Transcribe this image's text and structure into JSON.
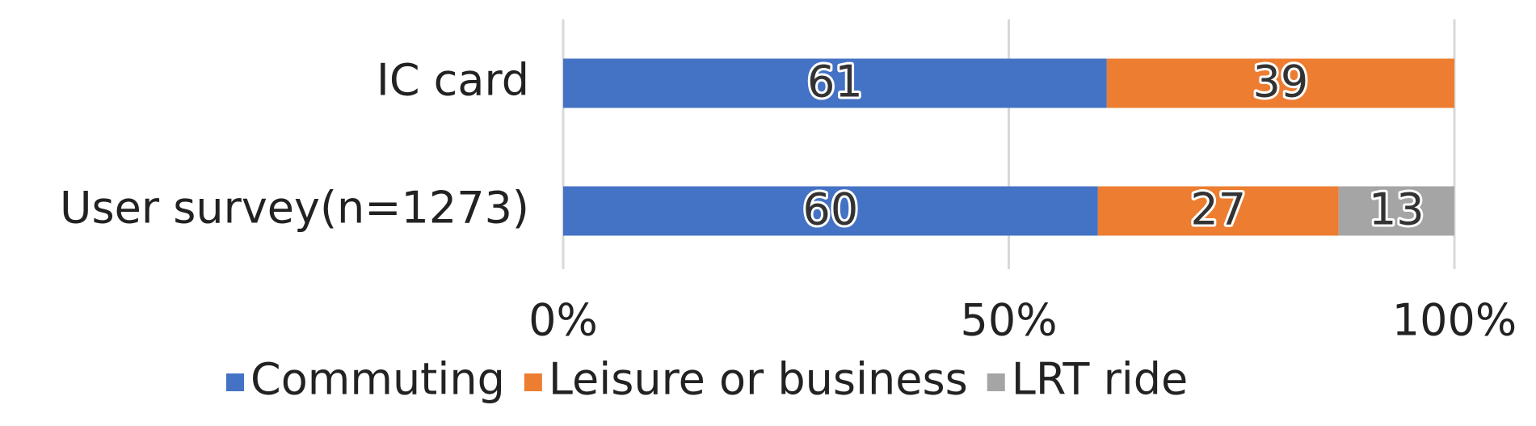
{
  "chart_data": {
    "type": "stacked-bar-horizontal",
    "categories": [
      "IC card",
      "User survey(n=1273)"
    ],
    "series": [
      {
        "name": "Commuting",
        "color": "#4472c4",
        "values": [
          61,
          60
        ]
      },
      {
        "name": "Leisure or business",
        "color": "#ed7d31",
        "values": [
          39,
          27
        ]
      },
      {
        "name": "LRT ride",
        "color": "#a5a5a5",
        "values": [
          null,
          13
        ]
      }
    ],
    "xlim": [
      0,
      100
    ],
    "xticks": [
      {
        "value": 0,
        "label": "0%"
      },
      {
        "value": 50,
        "label": "50%"
      },
      {
        "value": 100,
        "label": "100%"
      }
    ],
    "grid": true,
    "legend": "bottom"
  }
}
